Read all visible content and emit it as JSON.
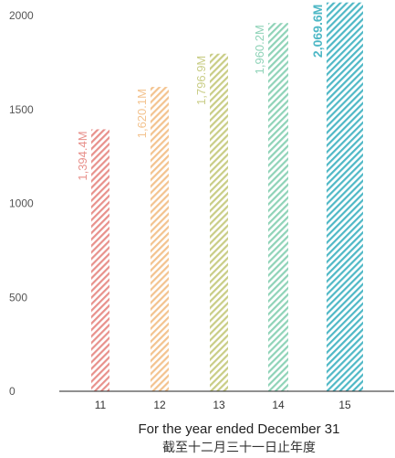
{
  "chart_data": {
    "type": "bar",
    "categories": [
      "11",
      "12",
      "13",
      "14",
      "15"
    ],
    "values": [
      1394.4,
      1620.1,
      1796.9,
      1960.2,
      2069.6
    ],
    "value_labels": [
      "1,394.4M",
      "1,620.1M",
      "1,796.9M",
      "1,960.2M",
      "2,069.6M"
    ],
    "xlabel": "For the year ended December 31",
    "xlabel_zh": "截至十二月三十一日止年度",
    "ylabel": "",
    "ylim": [
      0,
      2000
    ],
    "yticks": [
      "0",
      "500",
      "1000",
      "1500",
      "2000"
    ],
    "grid": false,
    "bar_style": "diagonal-hatched",
    "colors": [
      "#e8918c",
      "#f3c38f",
      "#c9cd86",
      "#8fd3b8",
      "#4fb8c6"
    ]
  }
}
